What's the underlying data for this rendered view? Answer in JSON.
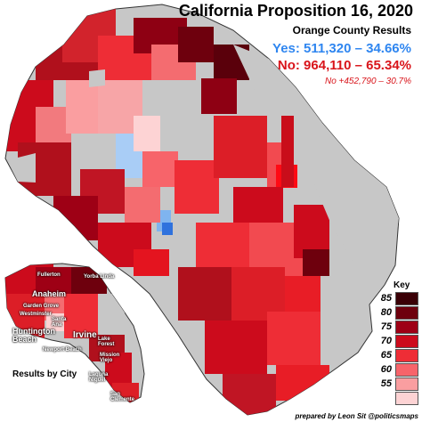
{
  "header": {
    "title": "California Proposition 16, 2020",
    "subtitle": "Orange County Results"
  },
  "results": {
    "yes_label": "Yes: 511,320 – 34.66%",
    "no_label": "No: 964,110 – 65.34%",
    "margin_label": "No +452,790 – 30.7%",
    "yes_color": "#2f86f0",
    "no_color": "#d9151b"
  },
  "inset": {
    "caption": "Results by City",
    "cities": [
      {
        "name": "Fullerton"
      },
      {
        "name": "Yorba Linda"
      },
      {
        "name": "Anaheim"
      },
      {
        "name": "Garden Grove"
      },
      {
        "name": "Westminster"
      },
      {
        "name": "Santa Ana"
      },
      {
        "name": "Huntington Beach"
      },
      {
        "name": "Irvine"
      },
      {
        "name": "Newport Beach"
      },
      {
        "name": "Lake Forest"
      },
      {
        "name": "Mission Viejo"
      },
      {
        "name": "Laguna Niguel"
      },
      {
        "name": "San Clemente"
      }
    ]
  },
  "legend": {
    "title": "Key",
    "items": [
      {
        "label": "85",
        "color": "#3a0006"
      },
      {
        "label": "80",
        "color": "#6e000d"
      },
      {
        "label": "75",
        "color": "#9e0015"
      },
      {
        "label": "70",
        "color": "#cc0b1c"
      },
      {
        "label": "65",
        "color": "#ee2d36"
      },
      {
        "label": "60",
        "color": "#f7646a"
      },
      {
        "label": "55",
        "color": "#fa9ea0"
      },
      {
        "label": "",
        "color": "#fdd3d4"
      }
    ]
  },
  "credit": "prepared by Leon Sit @politicsmaps"
}
